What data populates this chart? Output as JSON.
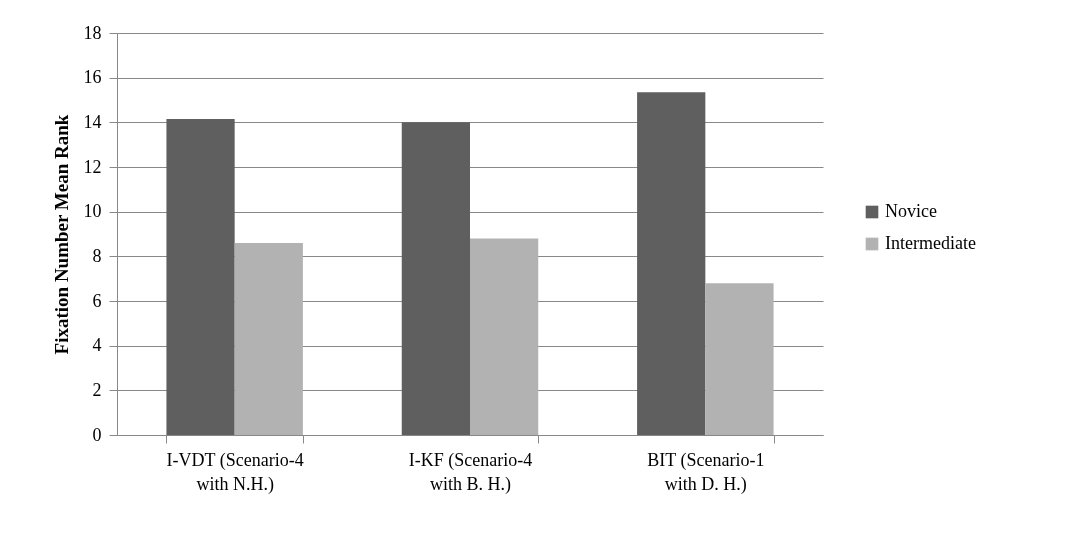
{
  "chart_data": {
    "type": "bar",
    "ylabel": "Fixation Number Mean Rank",
    "categories": [
      "I-VDT (Scenario-4\nwith N.H.)",
      "I-KF (Scenario-4\nwith B. H.)",
      "BIT (Scenario-1\nwith D. H.)"
    ],
    "series": [
      {
        "name": "Novice",
        "color": "#5f5f5f",
        "values": [
          14.15,
          14.0,
          15.35
        ]
      },
      {
        "name": "Intermediate",
        "color": "#b2b2b2",
        "values": [
          8.6,
          8.8,
          6.8
        ]
      }
    ],
    "ylim": [
      0,
      18
    ],
    "yticks": [
      0,
      2,
      4,
      6,
      8,
      10,
      12,
      14,
      16,
      18
    ],
    "grid": "y",
    "legend": "right"
  }
}
